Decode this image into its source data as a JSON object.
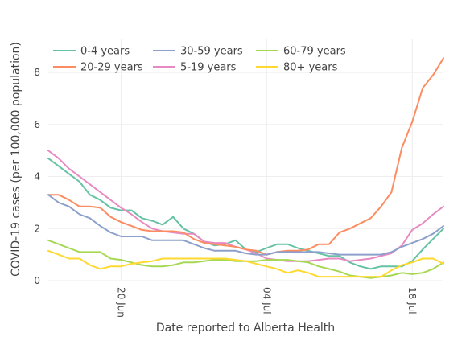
{
  "chart_data": {
    "type": "line",
    "xlabel": "Date reported to Alberta Health",
    "ylabel": "COVID-19 cases (per 100,000 population)",
    "ylim": [
      0,
      9.3
    ],
    "y_ticks": [
      0,
      2,
      4,
      6,
      8
    ],
    "x_range_days_from_start": [
      0,
      38
    ],
    "x_ticks": [
      {
        "label": "20 Jun",
        "date": "2020-06-20"
      },
      {
        "label": "04 Jul",
        "date": "2020-07-04"
      },
      {
        "label": "18 Jul",
        "date": "2020-07-18"
      }
    ],
    "x_start_date": "2020-06-13",
    "grid": true,
    "legend_position": "top-left",
    "series": [
      {
        "name": "0-4 years",
        "color": "#66c2a5",
        "values": [
          4.7,
          4.4,
          4.1,
          3.8,
          3.3,
          3.1,
          2.8,
          2.7,
          2.7,
          2.4,
          2.3,
          2.15,
          2.45,
          2.0,
          1.8,
          1.5,
          1.35,
          1.4,
          1.55,
          1.2,
          1.1,
          1.25,
          1.4,
          1.4,
          1.25,
          1.15,
          1.05,
          0.95,
          0.95,
          0.7,
          0.55,
          0.45,
          0.55,
          0.55,
          0.55,
          0.75,
          1.2,
          1.6,
          2.0
        ]
      },
      {
        "name": "5-19 years",
        "color": "#e78ac3",
        "values": [
          5.0,
          4.7,
          4.3,
          4.0,
          3.7,
          3.4,
          3.1,
          2.8,
          2.55,
          2.25,
          2.0,
          1.9,
          1.85,
          1.8,
          1.8,
          1.5,
          1.45,
          1.45,
          1.3,
          1.2,
          1.05,
          0.85,
          0.8,
          0.75,
          0.75,
          0.75,
          0.8,
          0.85,
          0.85,
          0.75,
          0.8,
          0.85,
          0.95,
          1.05,
          1.35,
          1.95,
          2.2,
          2.55,
          2.85
        ]
      },
      {
        "name": "20-29 years",
        "color": "#fc8d62",
        "values": [
          3.3,
          3.3,
          3.1,
          2.85,
          2.85,
          2.8,
          2.45,
          2.25,
          2.1,
          1.95,
          1.9,
          1.9,
          1.9,
          1.85,
          1.6,
          1.45,
          1.4,
          1.35,
          1.3,
          1.2,
          1.15,
          1.0,
          1.1,
          1.15,
          1.15,
          1.2,
          1.4,
          1.4,
          1.85,
          2.0,
          2.2,
          2.4,
          2.85,
          3.4,
          5.1,
          6.1,
          7.4,
          7.9,
          8.55
        ]
      },
      {
        "name": "60-79 years",
        "color": "#a6d854",
        "values": [
          1.55,
          1.4,
          1.25,
          1.1,
          1.1,
          1.1,
          0.85,
          0.8,
          0.7,
          0.6,
          0.55,
          0.55,
          0.6,
          0.7,
          0.7,
          0.75,
          0.8,
          0.8,
          0.75,
          0.75,
          0.75,
          0.8,
          0.8,
          0.8,
          0.75,
          0.7,
          0.55,
          0.45,
          0.35,
          0.2,
          0.15,
          0.1,
          0.15,
          0.2,
          0.3,
          0.25,
          0.3,
          0.45,
          0.7
        ]
      },
      {
        "name": "30-59 years",
        "color": "#8da0cb",
        "values": [
          3.3,
          3.0,
          2.85,
          2.55,
          2.4,
          2.1,
          1.85,
          1.7,
          1.7,
          1.7,
          1.55,
          1.55,
          1.55,
          1.55,
          1.4,
          1.25,
          1.15,
          1.15,
          1.15,
          1.05,
          1.0,
          1.0,
          1.1,
          1.1,
          1.1,
          1.1,
          1.1,
          1.05,
          1.0,
          1.0,
          1.0,
          1.0,
          1.0,
          1.1,
          1.3,
          1.45,
          1.6,
          1.8,
          2.1
        ]
      },
      {
        "name": "80+ years",
        "color": "#ffd92f",
        "values": [
          1.15,
          1.0,
          0.85,
          0.85,
          0.6,
          0.45,
          0.55,
          0.55,
          0.65,
          0.7,
          0.75,
          0.85,
          0.85,
          0.85,
          0.85,
          0.85,
          0.85,
          0.85,
          0.8,
          0.75,
          0.65,
          0.55,
          0.45,
          0.3,
          0.4,
          0.3,
          0.15,
          0.15,
          0.15,
          0.15,
          0.15,
          0.15,
          0.15,
          0.4,
          0.6,
          0.7,
          0.85,
          0.85,
          0.65
        ]
      }
    ],
    "legend_order": [
      "0-4 years",
      "20-29 years",
      "30-59 years",
      "5-19 years",
      "60-79 years",
      "80+ years"
    ]
  }
}
